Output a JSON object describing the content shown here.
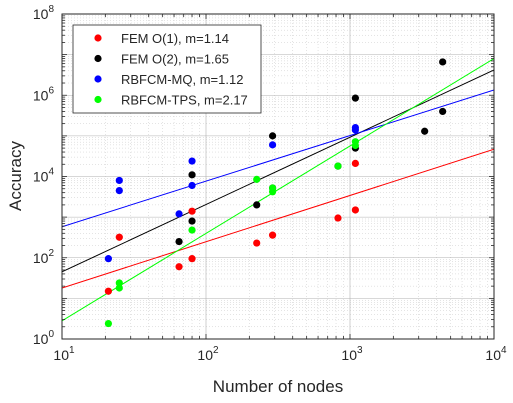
{
  "chart_data": {
    "type": "scatter",
    "title": "",
    "xlabel": "Number of nodes",
    "ylabel": "Accuracy",
    "xscale": "log",
    "yscale": "log",
    "xlim": [
      10,
      10000
    ],
    "ylim": [
      1,
      100000000
    ],
    "xticks": [
      {
        "value": 10,
        "base": "10",
        "exp": "1"
      },
      {
        "value": 100,
        "base": "10",
        "exp": "2"
      },
      {
        "value": 1000,
        "base": "10",
        "exp": "3"
      },
      {
        "value": 10000,
        "base": "10",
        "exp": "4"
      }
    ],
    "yticks": [
      {
        "value": 1,
        "base": "10",
        "exp": "0"
      },
      {
        "value": 100,
        "base": "10",
        "exp": "2"
      },
      {
        "value": 10000,
        "base": "10",
        "exp": "4"
      },
      {
        "value": 1000000,
        "base": "10",
        "exp": "6"
      },
      {
        "value": 100000000,
        "base": "10",
        "exp": "8"
      }
    ],
    "grid": true,
    "minor_grid": true,
    "legend_position": "top-left",
    "series": [
      {
        "name": "FEM O(1), m=1.14",
        "color": "#ff0000",
        "points": [
          [
            21,
            15
          ],
          [
            25,
            320
          ],
          [
            65,
            60
          ],
          [
            80,
            95
          ],
          [
            80,
            1400
          ],
          [
            225,
            230
          ],
          [
            290,
            360
          ],
          [
            825,
            950
          ],
          [
            1090,
            1500
          ],
          [
            1090,
            21000
          ]
        ],
        "fit": [
          [
            10,
            18
          ],
          [
            10000,
            47000
          ]
        ]
      },
      {
        "name": "FEM O(2), m=1.65",
        "color": "#000000",
        "points": [
          [
            65,
            250
          ],
          [
            80,
            800
          ],
          [
            80,
            11000
          ],
          [
            225,
            2000
          ],
          [
            290,
            5200
          ],
          [
            290,
            100000
          ],
          [
            825,
            18000
          ],
          [
            1090,
            50000
          ],
          [
            1090,
            850000
          ],
          [
            3300,
            130000
          ],
          [
            4400,
            400000
          ],
          [
            4400,
            6600000
          ]
        ],
        "fit": [
          [
            10,
            45
          ],
          [
            10000,
            4200000
          ]
        ]
      },
      {
        "name": "RBFCM-MQ, m=1.12",
        "color": "#0000ff",
        "points": [
          [
            21,
            95
          ],
          [
            25,
            4500
          ],
          [
            25,
            8000
          ],
          [
            65,
            1200
          ],
          [
            80,
            6000
          ],
          [
            80,
            24000
          ],
          [
            290,
            60000
          ],
          [
            1090,
            140000
          ],
          [
            1090,
            160000
          ]
        ],
        "fit": [
          [
            10,
            580
          ],
          [
            10000,
            1350000
          ]
        ]
      },
      {
        "name": "RBFCM-TPS, m=2.17",
        "color": "#00ff00",
        "points": [
          [
            21,
            2.4
          ],
          [
            25,
            18
          ],
          [
            25,
            24
          ],
          [
            80,
            480
          ],
          [
            225,
            8500
          ],
          [
            290,
            4200
          ],
          [
            290,
            5200
          ],
          [
            825,
            18000
          ],
          [
            1090,
            58000
          ],
          [
            1090,
            72000
          ]
        ],
        "fit": [
          [
            10,
            2.8
          ],
          [
            10000,
            8000000
          ]
        ]
      }
    ]
  }
}
